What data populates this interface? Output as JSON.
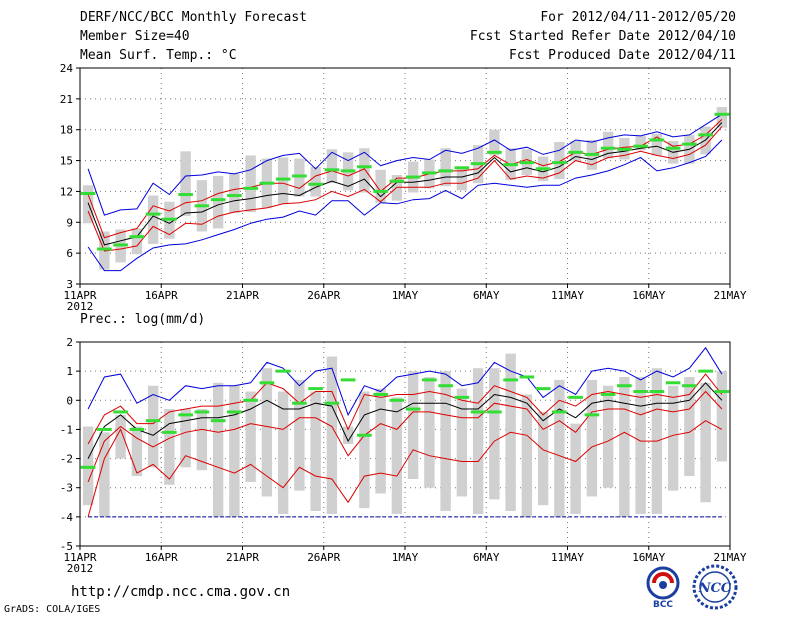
{
  "header": {
    "title": "DERF/NCC/BCC Monthly Forecast",
    "member_size": "Member Size=40",
    "variable_top": "Mean Surf. Temp.: °C",
    "period": "For 2012/04/11-2012/05/20",
    "fcst_started": "Fcst Started Refer Date 2012/04/10",
    "fcst_produced": "Fcst Produced Date 2012/04/11"
  },
  "bottom_label": "Prec.: log(mm/d)",
  "footer": {
    "url": "http://cmdp.ncc.cma.gov.cn",
    "credit": "GrADS: COLA/IGES",
    "logo_bcc": "BCC",
    "logo_ncc": "NCC"
  },
  "colors": {
    "envelope": "#0000dd",
    "spread": "#dd0000",
    "mean": "#000000",
    "obs": "#33dd33",
    "box": "#d0d0d0",
    "floor": "#000099"
  },
  "chart_data": [
    {
      "type": "area",
      "title": "Mean Surf. Temp.: °C",
      "ylim": [
        3,
        24
      ],
      "yticks": [
        3,
        6,
        9,
        12,
        15,
        18,
        21,
        24
      ],
      "xlim": [
        0,
        40
      ],
      "xticks": [
        {
          "d": 0,
          "label": "11APR",
          "sub": "2012"
        },
        {
          "d": 5,
          "label": "16APR"
        },
        {
          "d": 10,
          "label": "21APR"
        },
        {
          "d": 15,
          "label": "26APR"
        },
        {
          "d": 20,
          "label": "1MAY"
        },
        {
          "d": 25,
          "label": "6MAY"
        },
        {
          "d": 30,
          "label": "11MAY"
        },
        {
          "d": 35,
          "label": "16MAY"
        },
        {
          "d": 40,
          "label": "21MAY"
        }
      ],
      "days": [
        0,
        1,
        2,
        3,
        4,
        5,
        6,
        7,
        8,
        9,
        10,
        11,
        12,
        13,
        14,
        15,
        16,
        17,
        18,
        19,
        20,
        21,
        22,
        23,
        24,
        25,
        26,
        27,
        28,
        29,
        30,
        31,
        32,
        33,
        34,
        35,
        36,
        37,
        38,
        39
      ],
      "upper": [
        14.2,
        9.7,
        10.2,
        10.3,
        12.8,
        11.7,
        13.5,
        13.6,
        13.9,
        13.7,
        14.1,
        15.0,
        15.5,
        15.7,
        14.2,
        15.8,
        15.0,
        15.8,
        14.5,
        15.0,
        15.3,
        15.1,
        16.0,
        15.7,
        16.2,
        17.0,
        16.0,
        16.3,
        15.6,
        16.0,
        17.0,
        16.8,
        17.2,
        17.5,
        17.4,
        17.8,
        17.3,
        17.5,
        18.5,
        19.5
      ],
      "lower": [
        6.6,
        4.3,
        4.3,
        5.5,
        6.5,
        6.8,
        6.9,
        7.3,
        7.8,
        8.3,
        8.9,
        9.3,
        9.5,
        10.1,
        9.7,
        11.1,
        11.1,
        9.7,
        10.9,
        10.8,
        11.2,
        11.3,
        12.1,
        11.3,
        12.6,
        12.8,
        12.6,
        12.4,
        12.6,
        12.6,
        13.3,
        13.6,
        14.0,
        14.6,
        15.3,
        14.0,
        14.3,
        14.8,
        15.4,
        17.0
      ],
      "spread_hi": [
        11.7,
        7.5,
        8.0,
        8.4,
        10.6,
        10.1,
        10.9,
        11.1,
        11.8,
        12.2,
        12.4,
        12.8,
        12.8,
        12.3,
        13.5,
        14.0,
        13.5,
        14.2,
        12.0,
        13.3,
        13.3,
        13.7,
        14.0,
        14.0,
        14.2,
        15.5,
        14.6,
        15.1,
        14.5,
        14.9,
        15.8,
        15.6,
        16.1,
        16.3,
        16.4,
        17.3,
        16.4,
        16.6,
        17.5,
        19.0
      ],
      "spread_lo": [
        10.1,
        6.2,
        6.4,
        6.7,
        8.6,
        7.8,
        8.9,
        8.8,
        9.6,
        10.0,
        10.2,
        10.4,
        10.8,
        10.9,
        11.2,
        12.0,
        11.5,
        12.2,
        11.0,
        12.4,
        12.4,
        12.4,
        12.8,
        12.8,
        13.3,
        15.0,
        13.2,
        13.5,
        13.3,
        13.8,
        15.0,
        14.6,
        15.3,
        15.5,
        15.9,
        15.5,
        15.2,
        15.6,
        16.5,
        18.3
      ],
      "mean": [
        10.9,
        6.8,
        7.2,
        7.6,
        9.6,
        8.9,
        9.9,
        10.0,
        10.7,
        11.1,
        11.3,
        11.6,
        11.8,
        11.6,
        12.4,
        13.0,
        12.5,
        13.2,
        11.5,
        12.9,
        12.9,
        13.1,
        13.4,
        13.4,
        13.8,
        15.3,
        13.9,
        14.3,
        13.9,
        14.4,
        15.4,
        15.1,
        15.7,
        15.9,
        16.2,
        16.4,
        15.8,
        16.1,
        17.0,
        18.7
      ],
      "box_hi": [
        12.6,
        8.1,
        8.3,
        8.4,
        11.6,
        11.0,
        15.9,
        13.1,
        13.5,
        13.7,
        15.5,
        15.2,
        15.3,
        15.2,
        14.4,
        16.1,
        15.8,
        16.2,
        14.1,
        13.6,
        14.9,
        15.1,
        16.2,
        14.2,
        16.5,
        18.0,
        16.2,
        16.1,
        15.4,
        16.8,
        16.9,
        17.0,
        17.8,
        17.2,
        17.4,
        17.6,
        16.9,
        17.5,
        18.3,
        20.2
      ],
      "box_lo": [
        8.9,
        4.4,
        5.1,
        5.9,
        6.9,
        7.4,
        9.6,
        8.1,
        8.4,
        9.9,
        10.0,
        10.4,
        10.8,
        11.5,
        11.5,
        12.8,
        12.1,
        11.9,
        10.9,
        11.1,
        11.9,
        12.3,
        12.5,
        12.1,
        12.8,
        15.5,
        13.1,
        13.6,
        13.0,
        13.2,
        15.0,
        14.1,
        15.2,
        15.1,
        16.0,
        15.5,
        14.7,
        14.7,
        15.6,
        18.2
      ],
      "obs": [
        11.8,
        6.4,
        6.8,
        7.6,
        9.8,
        9.3,
        11.7,
        10.6,
        11.2,
        11.6,
        12.3,
        12.8,
        13.2,
        13.5,
        12.7,
        14.1,
        14.0,
        14.4,
        12.0,
        13.0,
        13.4,
        13.8,
        14.0,
        14.3,
        14.7,
        15.8,
        14.6,
        14.8,
        14.2,
        14.8,
        15.8,
        15.6,
        16.2,
        16.1,
        16.4,
        17.0,
        16.2,
        16.6,
        17.5,
        19.5
      ]
    },
    {
      "type": "area",
      "title": "Prec.: log(mm/d)",
      "ylim": [
        -5,
        2
      ],
      "yticks": [
        -5,
        -4,
        -3,
        -2,
        -1,
        0,
        1,
        2
      ],
      "xlim": [
        0,
        40
      ],
      "floor": -4,
      "xticks": [
        {
          "d": 0,
          "label": "11APR",
          "sub": "2012"
        },
        {
          "d": 5,
          "label": "16APR"
        },
        {
          "d": 10,
          "label": "21APR"
        },
        {
          "d": 15,
          "label": "26APR"
        },
        {
          "d": 20,
          "label": "1MAY"
        },
        {
          "d": 25,
          "label": "6MAY"
        },
        {
          "d": 30,
          "label": "11MAY"
        },
        {
          "d": 35,
          "label": "16MAY"
        },
        {
          "d": 40,
          "label": "21MAY"
        }
      ],
      "days": [
        0,
        1,
        2,
        3,
        4,
        5,
        6,
        7,
        8,
        9,
        10,
        11,
        12,
        13,
        14,
        15,
        16,
        17,
        18,
        19,
        20,
        21,
        22,
        23,
        24,
        25,
        26,
        27,
        28,
        29,
        30,
        31,
        32,
        33,
        34,
        35,
        36,
        37,
        38,
        39
      ],
      "upper": [
        -0.3,
        0.8,
        0.9,
        -0.1,
        0.2,
        0.0,
        0.5,
        0.4,
        0.5,
        0.5,
        0.6,
        1.3,
        1.1,
        0.5,
        1.0,
        1.1,
        -0.5,
        0.5,
        0.3,
        0.8,
        0.9,
        1.0,
        0.9,
        0.5,
        0.6,
        1.3,
        1.0,
        0.8,
        0.1,
        0.5,
        0.2,
        1.0,
        1.1,
        1.0,
        0.7,
        1.0,
        0.8,
        1.1,
        1.8,
        0.9
      ],
      "lower": [
        -4.0,
        -2.0,
        -1.0,
        -2.5,
        -2.2,
        -2.7,
        -1.9,
        -2.1,
        -2.3,
        -2.5,
        -2.2,
        -2.6,
        -3.0,
        -2.3,
        -2.6,
        -2.7,
        -3.5,
        -2.6,
        -2.5,
        -2.6,
        -1.7,
        -1.9,
        -2.0,
        -2.1,
        -2.1,
        -1.4,
        -1.1,
        -1.2,
        -1.7,
        -1.9,
        -2.1,
        -1.6,
        -1.4,
        -1.1,
        -1.4,
        -1.4,
        -1.2,
        -1.1,
        -0.7,
        -1.0
      ],
      "spread_hi": [
        -1.5,
        -0.5,
        -0.2,
        -0.8,
        -0.8,
        -0.4,
        -0.3,
        -0.2,
        -0.2,
        -0.1,
        0.0,
        0.6,
        0.4,
        -0.1,
        0.3,
        0.3,
        -1.0,
        0.2,
        0.1,
        0.2,
        0.2,
        0.3,
        0.2,
        0.0,
        -0.1,
        0.5,
        0.3,
        0.1,
        -0.5,
        0.0,
        -0.2,
        0.2,
        0.3,
        0.2,
        0.1,
        0.2,
        0.1,
        0.2,
        0.9,
        0.2
      ],
      "spread_lo": [
        -2.8,
        -1.4,
        -0.9,
        -1.3,
        -1.6,
        -1.3,
        -1.1,
        -1.0,
        -1.1,
        -1.0,
        -0.8,
        -0.9,
        -1.0,
        -0.6,
        -0.6,
        -0.9,
        -1.9,
        -1.2,
        -0.8,
        -1.0,
        -0.4,
        -0.4,
        -0.5,
        -0.6,
        -0.6,
        -0.1,
        -0.2,
        -0.3,
        -1.0,
        -0.7,
        -1.1,
        -0.4,
        -0.3,
        -0.3,
        -0.5,
        -0.3,
        -0.4,
        -0.3,
        0.3,
        -0.3
      ],
      "mean": [
        -2.0,
        -0.9,
        -0.5,
        -1.0,
        -1.2,
        -0.8,
        -0.7,
        -0.6,
        -0.6,
        -0.5,
        -0.3,
        0.0,
        -0.3,
        -0.3,
        -0.1,
        -0.2,
        -1.4,
        -0.5,
        -0.3,
        -0.4,
        -0.1,
        -0.1,
        -0.1,
        -0.3,
        -0.3,
        0.2,
        0.1,
        -0.1,
        -0.7,
        -0.3,
        -0.6,
        -0.1,
        0.0,
        -0.1,
        -0.2,
        -0.1,
        -0.1,
        0.0,
        0.6,
        0.0
      ],
      "box_hi": [
        -0.9,
        -1.1,
        -0.5,
        -0.9,
        0.5,
        -0.3,
        -0.3,
        -0.3,
        0.6,
        0.5,
        0.3,
        1.1,
        0.3,
        0.7,
        0.3,
        1.5,
        -0.9,
        0.3,
        0.4,
        0.1,
        1.0,
        0.8,
        1.0,
        0.4,
        1.1,
        1.1,
        1.6,
        0.2,
        -0.4,
        0.7,
        -0.8,
        0.7,
        0.5,
        0.8,
        0.8,
        1.1,
        0.5,
        0.8,
        0.6,
        1.0
      ],
      "box_lo": [
        -3.6,
        -4.0,
        -2.0,
        -2.6,
        -2.3,
        -2.9,
        -2.3,
        -2.4,
        -4.0,
        -4.0,
        -2.8,
        -3.3,
        -3.9,
        -3.1,
        -3.8,
        -3.9,
        -1.5,
        -3.7,
        -3.2,
        -3.9,
        -2.7,
        -3.0,
        -3.8,
        -3.3,
        -3.9,
        -3.4,
        -3.8,
        -4.0,
        -3.6,
        -4.0,
        -3.9,
        -3.3,
        -3.0,
        -4.0,
        -3.9,
        -3.9,
        -3.1,
        -2.6,
        -3.5,
        -2.1
      ],
      "obs": [
        -2.3,
        -1.0,
        -0.4,
        -1.0,
        -0.7,
        -1.1,
        -0.5,
        -0.4,
        -0.7,
        -0.4,
        0.0,
        0.6,
        1.0,
        -0.1,
        0.4,
        -0.1,
        0.7,
        -1.2,
        0.2,
        0.0,
        -0.3,
        0.7,
        0.5,
        0.1,
        -0.4,
        -0.4,
        0.7,
        0.8,
        0.4,
        -0.4,
        0.1,
        -0.5,
        0.2,
        0.5,
        0.3,
        0.3,
        0.6,
        0.5,
        1.0,
        0.3
      ]
    }
  ]
}
